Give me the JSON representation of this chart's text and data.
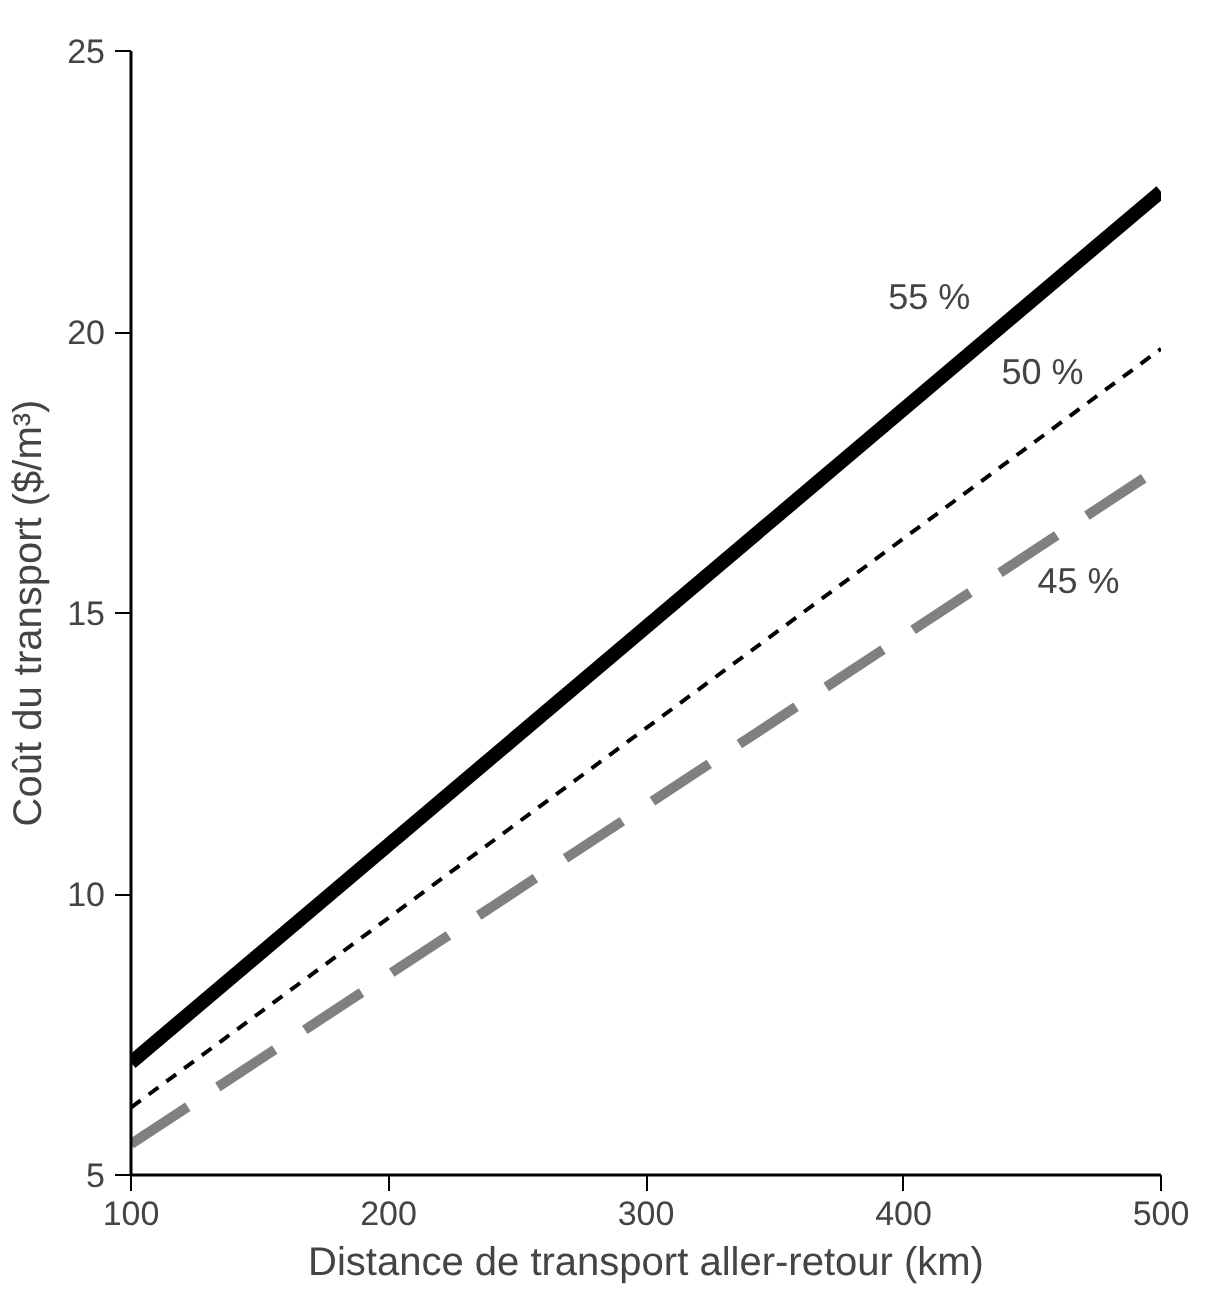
{
  "chart_data": {
    "type": "line",
    "xlabel": "Distance de transport aller-retour (km)",
    "ylabel": "Coût du transport ($/m³)",
    "x": [
      100,
      500
    ],
    "series": [
      {
        "name": "55 %",
        "color": "#000000",
        "line_style": "solid",
        "values": [
          7.0,
          22.5
        ]
      },
      {
        "name": "50 %",
        "color": "#000000",
        "line_style": "dashed",
        "values": [
          6.2,
          19.7
        ]
      },
      {
        "name": "45 %",
        "color": "#808080",
        "line_style": "dashed",
        "values": [
          5.55,
          17.6
        ]
      }
    ],
    "xlim": [
      100,
      500
    ],
    "ylim": [
      5,
      25
    ],
    "xticks": [
      100,
      200,
      300,
      400,
      500
    ],
    "yticks": [
      5,
      10,
      15,
      20,
      25
    ],
    "grid": false,
    "legend": false
  }
}
